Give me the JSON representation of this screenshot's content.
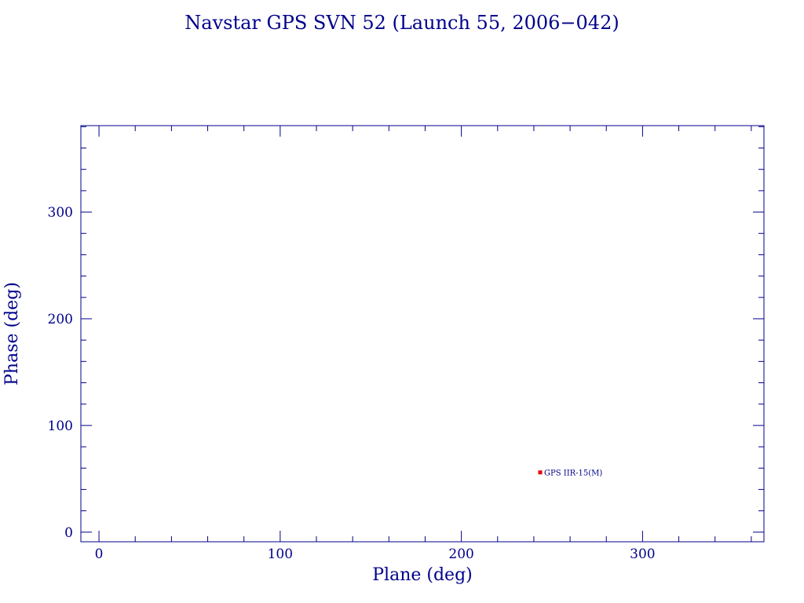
{
  "chart_data": {
    "type": "scatter",
    "title": "Navstar GPS SVN 52 (Launch 55, 2006−042)",
    "xlabel": "Plane (deg)",
    "ylabel": "Phase (deg)",
    "xlim": [
      -10,
      367
    ],
    "ylim": [
      -9,
      381
    ],
    "xticks": [
      0,
      100,
      200,
      300
    ],
    "yticks": [
      0,
      100,
      200,
      300
    ],
    "x_minor_step": 20,
    "y_minor_step": 20,
    "grid": false,
    "series": [
      {
        "points": [
          {
            "x": 243.5,
            "y": 56,
            "label": "GPS IIR-15(M)"
          }
        ]
      }
    ]
  },
  "colors": {
    "axis": "#00008b",
    "text": "#00008b",
    "marker": "#e8000b"
  }
}
